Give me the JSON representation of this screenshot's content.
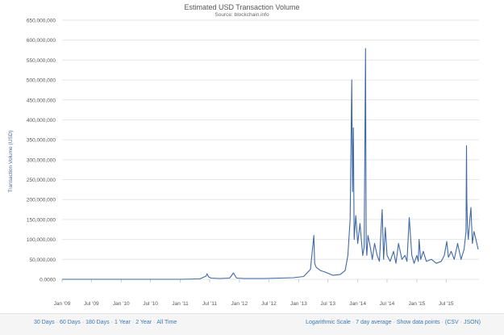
{
  "colors": {
    "series": "#3f6aa6",
    "grid": "#e6e6e6",
    "link": "#3a78b5"
  },
  "chart_data": {
    "type": "line",
    "title": "Estimated USD Transaction Volume",
    "subtitle": "Source: blockchain.info",
    "ylabel": "Transaction Volume (USD)",
    "xlabel": "",
    "ylim": [
      0,
      650000000
    ],
    "y_ticks": [
      0,
      50000000,
      100000000,
      150000000,
      200000000,
      250000000,
      300000000,
      350000000,
      400000000,
      450000000,
      500000000,
      550000000,
      600000000,
      650000000
    ],
    "y_tick_labels": [
      "0.0000",
      "50,000,000",
      "100,000,000",
      "150,000,000",
      "200,000,000",
      "250,000,000",
      "300,000,000",
      "350,000,000",
      "400,000,000",
      "450,000,000",
      "500,000,000",
      "550,000,000",
      "600,000,000",
      "650,000,000"
    ],
    "xlim": [
      "2009-01-01",
      "2016-01-20"
    ],
    "x_ticks": [
      "2009-01-01",
      "2009-07-01",
      "2010-01-01",
      "2010-07-01",
      "2011-01-01",
      "2011-07-01",
      "2012-01-01",
      "2012-07-01",
      "2013-01-01",
      "2013-07-01",
      "2014-01-01",
      "2014-07-01",
      "2015-01-01",
      "2015-07-01"
    ],
    "x_tick_labels": [
      "Jan '09",
      "Jul '09",
      "Jan '10",
      "Jul '10",
      "Jan '11",
      "Jul '11",
      "Jan '12",
      "Jul '12",
      "Jan '13",
      "Jul '13",
      "Jan '14",
      "Jul '14",
      "Jan '15",
      "Jul '15"
    ],
    "grid": true,
    "series": [
      {
        "x": [
          "2009-01-01",
          "2010-06-01",
          "2011-01-01",
          "2011-05-01",
          "2011-06-10",
          "2011-06-15",
          "2011-06-25",
          "2011-07-10",
          "2011-09-01",
          "2011-11-01",
          "2011-11-15",
          "2011-11-25",
          "2011-12-15",
          "2012-02-01",
          "2012-06-01",
          "2012-09-01",
          "2012-12-01",
          "2013-02-01",
          "2013-03-15",
          "2013-04-05",
          "2013-04-10",
          "2013-04-20",
          "2013-05-15",
          "2013-06-15",
          "2013-08-01",
          "2013-09-15",
          "2013-10-15",
          "2013-11-01",
          "2013-11-15",
          "2013-11-25",
          "2013-11-30",
          "2013-12-05",
          "2013-12-10",
          "2013-12-20",
          "2014-01-01",
          "2014-01-15",
          "2014-02-01",
          "2014-02-10",
          "2014-02-18",
          "2014-02-22",
          "2014-02-26",
          "2014-03-05",
          "2014-03-20",
          "2014-04-01",
          "2014-04-15",
          "2014-05-01",
          "2014-05-15",
          "2014-06-01",
          "2014-06-10",
          "2014-06-20",
          "2014-07-01",
          "2014-07-20",
          "2014-08-10",
          "2014-08-25",
          "2014-09-10",
          "2014-10-01",
          "2014-10-20",
          "2014-11-01",
          "2014-11-15",
          "2014-12-01",
          "2014-12-15",
          "2015-01-01",
          "2015-01-10",
          "2015-01-15",
          "2015-01-25",
          "2015-02-10",
          "2015-03-01",
          "2015-04-01",
          "2015-05-01",
          "2015-06-01",
          "2015-06-20",
          "2015-07-05",
          "2015-07-15",
          "2015-08-01",
          "2015-08-20",
          "2015-09-10",
          "2015-10-01",
          "2015-10-20",
          "2015-11-01",
          "2015-11-04",
          "2015-11-06",
          "2015-11-10",
          "2015-11-15",
          "2015-11-22",
          "2015-12-01",
          "2015-12-10",
          "2015-12-20",
          "2016-01-01",
          "2016-01-15"
        ],
        "values": [
          0,
          0,
          0,
          1000000,
          8000000,
          14000000,
          6000000,
          3000000,
          2000000,
          3000000,
          10000000,
          16000000,
          3000000,
          2000000,
          2000000,
          3000000,
          4000000,
          7000000,
          25000000,
          110000000,
          40000000,
          30000000,
          22000000,
          18000000,
          10000000,
          12000000,
          22000000,
          60000000,
          150000000,
          500000000,
          220000000,
          380000000,
          100000000,
          160000000,
          90000000,
          140000000,
          60000000,
          80000000,
          579000000,
          90000000,
          60000000,
          110000000,
          80000000,
          50000000,
          90000000,
          60000000,
          45000000,
          175000000,
          50000000,
          130000000,
          60000000,
          45000000,
          70000000,
          40000000,
          90000000,
          50000000,
          60000000,
          45000000,
          155000000,
          60000000,
          40000000,
          60000000,
          45000000,
          100000000,
          50000000,
          70000000,
          45000000,
          50000000,
          40000000,
          45000000,
          60000000,
          95000000,
          55000000,
          70000000,
          50000000,
          90000000,
          50000000,
          75000000,
          120000000,
          335000000,
          200000000,
          130000000,
          100000000,
          140000000,
          180000000,
          90000000,
          120000000,
          100000000,
          75000000
        ]
      }
    ]
  },
  "footer": {
    "range_30d": "30 Days",
    "range_60d": "60 Days",
    "range_180d": "180 Days",
    "range_1y": "1 Year",
    "range_2y": "2 Year",
    "range_all": "All Time",
    "log_scale": "Logarithmic Scale",
    "avg_7d": "7 day average",
    "show_points": "Show data points",
    "csv": "CSV",
    "json": "JSON"
  }
}
